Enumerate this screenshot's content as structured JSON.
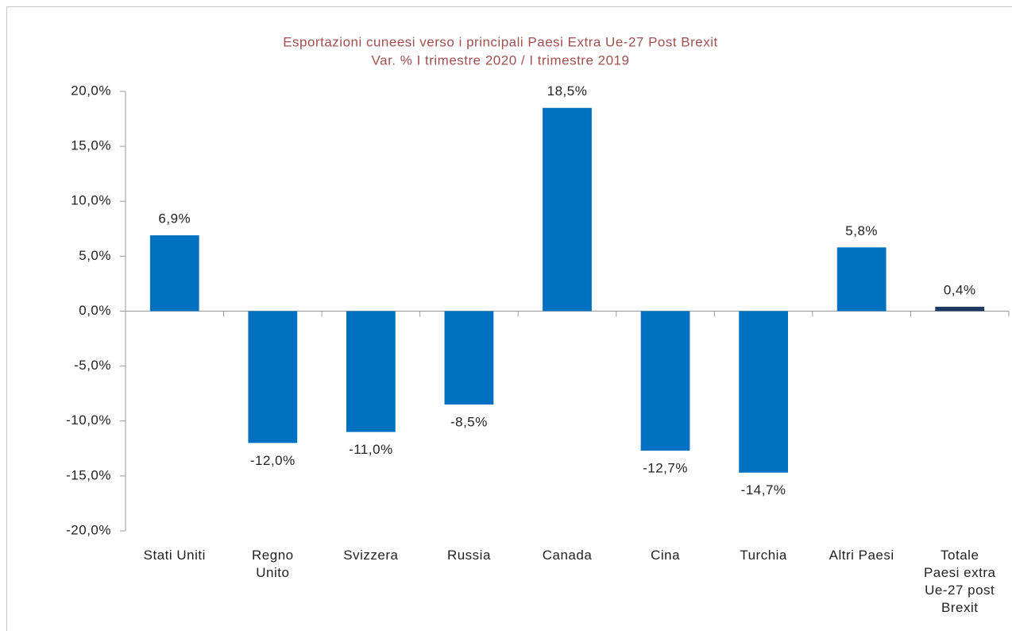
{
  "chart_data": {
    "type": "bar",
    "title": "Esportazioni cuneesi verso i principali Paesi Extra Ue-27 Post Brexit",
    "subtitle": "Var. % I trimestre 2020 / I trimestre 2019",
    "categories": [
      "Stati Uniti",
      "Regno\nUnito",
      "Svizzera",
      "Russia",
      "Canada",
      "Cina",
      "Turchia",
      "Altri Paesi",
      "Totale\nPaesi extra\nUe-27 post\nBrexit"
    ],
    "values": [
      6.9,
      -12.0,
      -11.0,
      -8.5,
      18.5,
      -12.7,
      -14.7,
      5.8,
      0.4
    ],
    "value_labels": [
      "6,9%",
      "-12,0%",
      "-11,0%",
      "-8,5%",
      "18,5%",
      "-12,7%",
      "-14,7%",
      "5,8%",
      "0,4%"
    ],
    "colors": [
      "#0070c0",
      "#0070c0",
      "#0070c0",
      "#0070c0",
      "#0070c0",
      "#0070c0",
      "#0070c0",
      "#0070c0",
      "#1f3864"
    ],
    "ylim": [
      -20,
      20
    ],
    "yticks": [
      {
        "value": -20,
        "label": "-20,0%"
      },
      {
        "value": -15,
        "label": "-15,0%"
      },
      {
        "value": -10,
        "label": "-10,0%"
      },
      {
        "value": -5,
        "label": "-5,0%"
      },
      {
        "value": 0,
        "label": "0,0%"
      },
      {
        "value": 5,
        "label": "5,0%"
      },
      {
        "value": 10,
        "label": "10,0%"
      },
      {
        "value": 15,
        "label": "15,0%"
      },
      {
        "value": 20,
        "label": "20,0%"
      }
    ],
    "grid": false
  }
}
